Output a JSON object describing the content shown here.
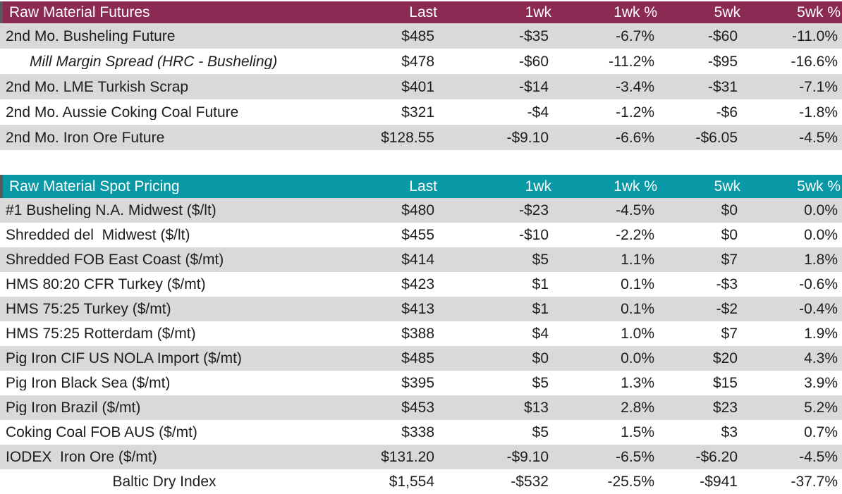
{
  "palette": {
    "futures_header_bg": "#8B2A52",
    "spot_header_bg": "#0998A6",
    "negative": "#C00000",
    "positive": "#567326",
    "row_alt_bg": "#D9D9D9",
    "row_bg": "#FFFFFF",
    "header_text": "#FFFFFF"
  },
  "chart_data": [
    {
      "type": "table",
      "title": "Raw Material Futures",
      "columns": [
        "Last",
        "1wk",
        "1wk %",
        "5wk",
        "5wk %"
      ],
      "rows": [
        {
          "label": "2nd Mo. Busheling Future",
          "values": [
            "$485",
            "-$35",
            "-6.7%",
            "-$60",
            "-11.0%"
          ]
        },
        {
          "label": "Mill Margin Spread (HRC - Busheling)",
          "style": "italic-indent",
          "values": [
            "$478",
            "-$60",
            "-11.2%",
            "-$95",
            "-16.6%"
          ]
        },
        {
          "label": "2nd Mo. LME Turkish Scrap",
          "values": [
            "$401",
            "-$14",
            "-3.4%",
            "-$31",
            "-7.1%"
          ]
        },
        {
          "label": "2nd Mo. Aussie Coking Coal Future",
          "values": [
            "$321",
            "-$4",
            "-1.2%",
            "-$6",
            "-1.8%"
          ]
        },
        {
          "label": "2nd Mo. Iron Ore Future",
          "values": [
            "$128.55",
            "-$9.10",
            "-6.6%",
            "-$6.05",
            "-4.5%"
          ]
        }
      ]
    },
    {
      "type": "table",
      "title": "Raw Material Spot Pricing",
      "columns": [
        "Last",
        "1wk",
        "1wk %",
        "5wk",
        "5wk %"
      ],
      "rows": [
        {
          "label": "#1 Busheling N.A. Midwest ($/lt)",
          "values": [
            "$480",
            "-$23",
            "-4.5%",
            "$0",
            "0.0%"
          ]
        },
        {
          "label": "Shredded del  Midwest ($/lt)",
          "values": [
            "$455",
            "-$10",
            "-2.2%",
            "$0",
            "0.0%"
          ]
        },
        {
          "label": "Shredded FOB East Coast ($/mt)",
          "values": [
            "$414",
            "$5",
            "1.1%",
            "$7",
            "1.8%"
          ]
        },
        {
          "label": "HMS 80:20 CFR Turkey ($/mt)",
          "values": [
            "$423",
            "$1",
            "0.1%",
            "-$3",
            "-0.6%"
          ]
        },
        {
          "label": "HMS 75:25 Turkey ($/mt)",
          "values": [
            "$413",
            "$1",
            "0.1%",
            "-$2",
            "-0.4%"
          ]
        },
        {
          "label": "HMS 75:25 Rotterdam ($/mt)",
          "values": [
            "$388",
            "$4",
            "1.0%",
            "$7",
            "1.9%"
          ]
        },
        {
          "label": "Pig Iron CIF US NOLA Import ($/mt)",
          "values": [
            "$485",
            "$0",
            "0.0%",
            "$20",
            "4.3%"
          ]
        },
        {
          "label": "Pig Iron Black Sea ($/mt)",
          "values": [
            "$395",
            "$5",
            "1.3%",
            "$15",
            "3.9%"
          ]
        },
        {
          "label": "Pig Iron Brazil ($/mt)",
          "values": [
            "$453",
            "$13",
            "2.8%",
            "$23",
            "5.2%"
          ]
        },
        {
          "label": "Coking Coal FOB AUS ($/mt)",
          "values": [
            "$338",
            "$5",
            "1.5%",
            "$3",
            "0.7%"
          ]
        },
        {
          "label": "IODEX  Iron Ore ($/mt)",
          "values": [
            "$131.20",
            "-$9.10",
            "-6.5%",
            "-$6.20",
            "-4.5%"
          ]
        },
        {
          "label": "Baltic Dry Index",
          "style": "center",
          "values": [
            "$1,554",
            "-$532",
            "-25.5%",
            "-$941",
            "-37.7%"
          ]
        }
      ]
    }
  ]
}
